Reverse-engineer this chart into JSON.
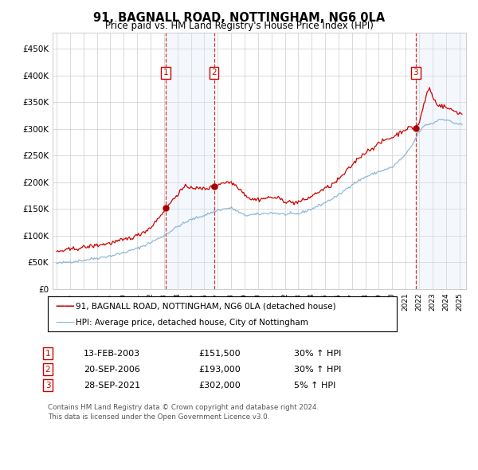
{
  "title": "91, BAGNALL ROAD, NOTTINGHAM, NG6 0LA",
  "subtitle": "Price paid vs. HM Land Registry's House Price Index (HPI)",
  "legend_red": "91, BAGNALL ROAD, NOTTINGHAM, NG6 0LA (detached house)",
  "legend_blue": "HPI: Average price, detached house, City of Nottingham",
  "footer": "Contains HM Land Registry data © Crown copyright and database right 2024.\nThis data is licensed under the Open Government Licence v3.0.",
  "transactions": [
    {
      "num": 1,
      "date": "13-FEB-2003",
      "price": "£151,500",
      "hpi": "30% ↑ HPI",
      "x_year": 2003.12
    },
    {
      "num": 2,
      "date": "20-SEP-2006",
      "price": "£193,000",
      "hpi": "30% ↑ HPI",
      "x_year": 2006.72
    },
    {
      "num": 3,
      "date": "28-SEP-2021",
      "price": "£302,000",
      "hpi": "5% ↑ HPI",
      "x_year": 2021.74
    }
  ],
  "ylim": [
    0,
    480000
  ],
  "yticks": [
    0,
    50000,
    100000,
    150000,
    200000,
    250000,
    300000,
    350000,
    400000,
    450000
  ],
  "xlim_start": 1994.7,
  "xlim_end": 2025.5,
  "red_color": "#cc0000",
  "blue_color": "#7aadd4",
  "shade_color": "#dce6f5",
  "grid_color": "#cccccc",
  "background_color": "#ffffff",
  "dot_color": "#aa0000"
}
